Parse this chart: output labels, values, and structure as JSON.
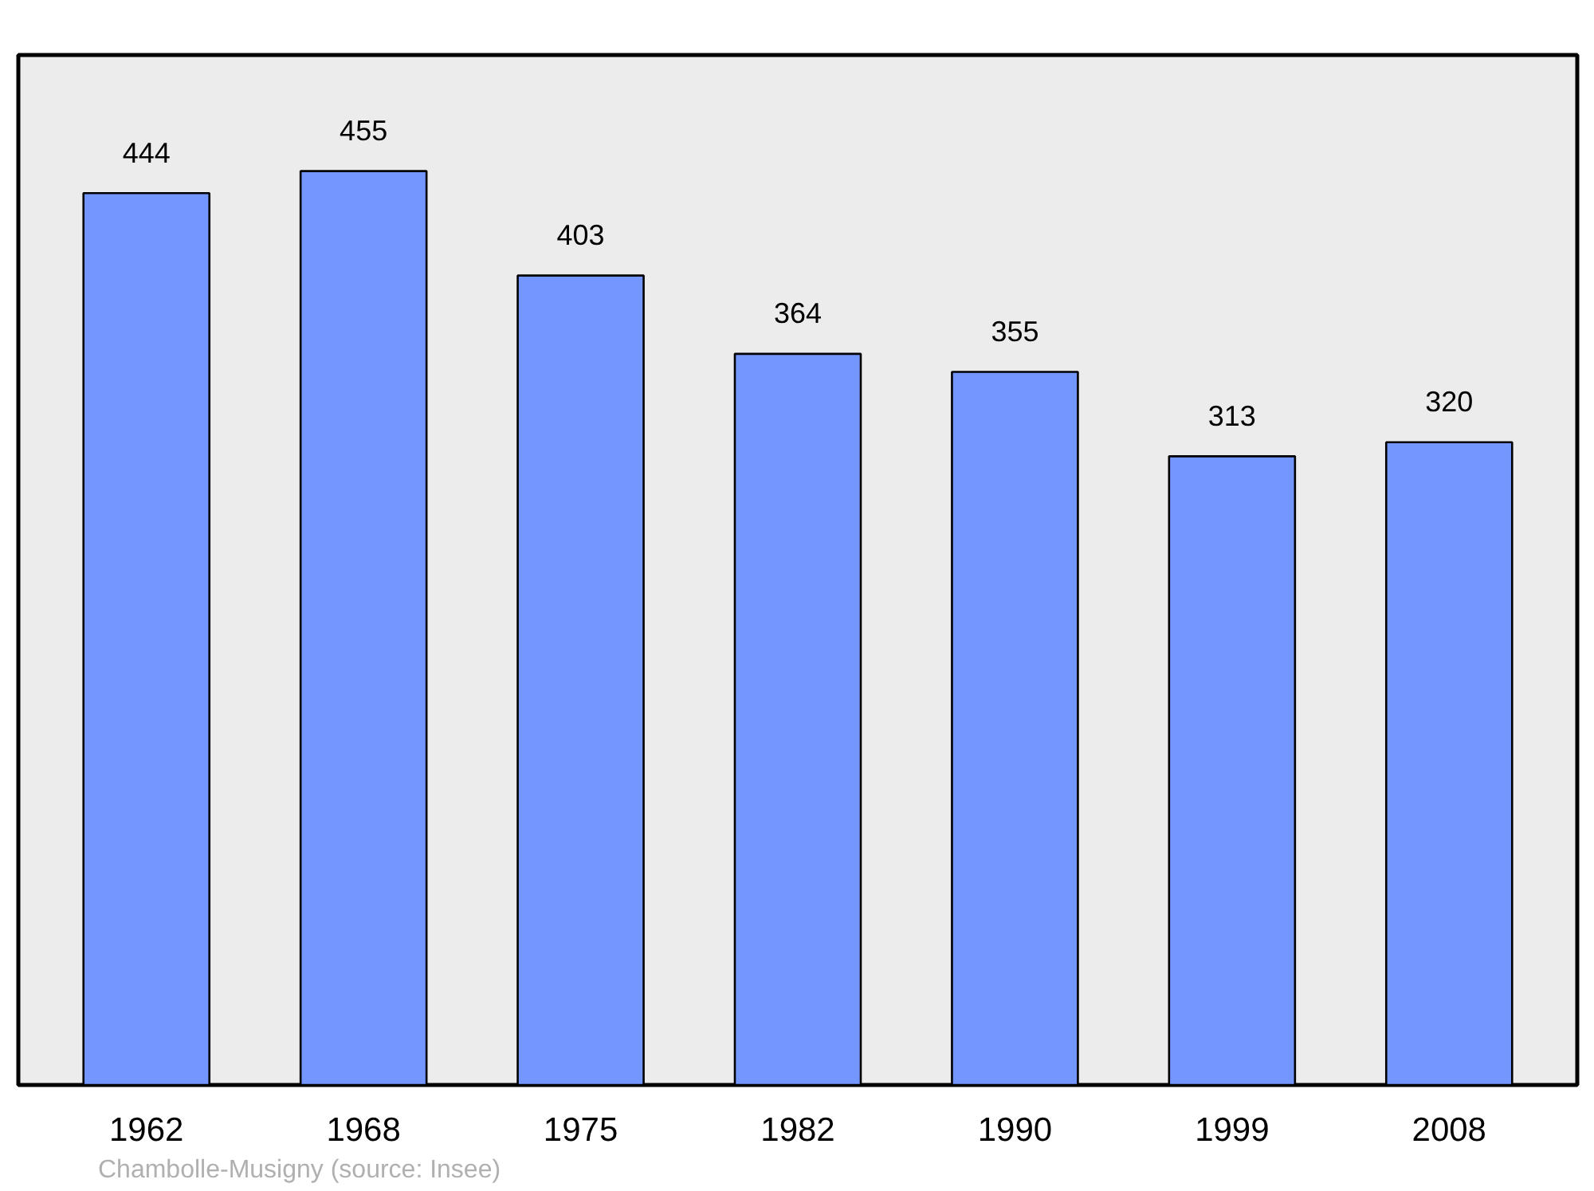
{
  "chart_data": {
    "type": "bar",
    "categories": [
      "1962",
      "1968",
      "1975",
      "1982",
      "1990",
      "1999",
      "2008"
    ],
    "values": [
      444,
      455,
      403,
      364,
      355,
      313,
      320
    ],
    "color": "#7397ff",
    "data_labels": true,
    "grid": false,
    "annotations": [
      "Chambolle-Musigny    (source: Insee)"
    ]
  }
}
